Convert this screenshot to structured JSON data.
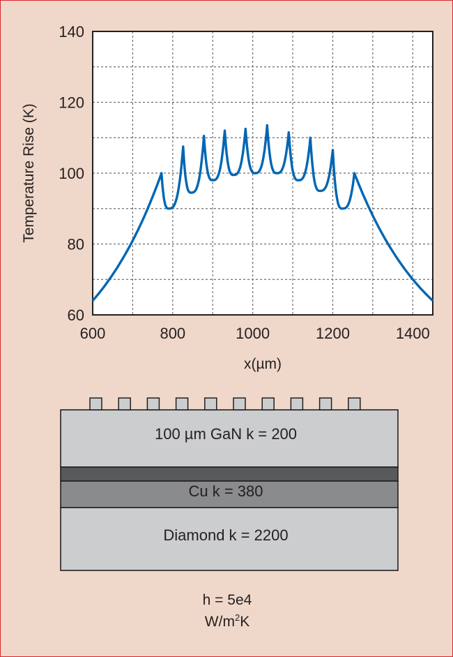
{
  "chart_data": {
    "type": "line",
    "xlabel": "x(µm)",
    "ylabel": "Temperature Rise (K)",
    "xlim": [
      600,
      1450
    ],
    "ylim": [
      60,
      140
    ],
    "x_ticks": [
      600,
      800,
      1000,
      1200,
      1400
    ],
    "y_ticks": [
      60,
      80,
      100,
      120,
      140
    ],
    "grid": true,
    "line_color": "#0066b3",
    "series": [
      {
        "peaks": [
          {
            "x": 772,
            "y": 100
          },
          {
            "x": 826,
            "y": 107.5
          },
          {
            "x": 878,
            "y": 110.5
          },
          {
            "x": 930,
            "y": 112
          },
          {
            "x": 982,
            "y": 112.5
          },
          {
            "x": 1036,
            "y": 113.5
          },
          {
            "x": 1090,
            "y": 111.5
          },
          {
            "x": 1144,
            "y": 110
          },
          {
            "x": 1200,
            "y": 106.5
          },
          {
            "x": 1254,
            "y": 100
          }
        ],
        "valleys": [
          {
            "x": 790,
            "y": 90
          },
          {
            "x": 846,
            "y": 94.5
          },
          {
            "x": 900,
            "y": 98
          },
          {
            "x": 952,
            "y": 99.5
          },
          {
            "x": 1006,
            "y": 100
          },
          {
            "x": 1060,
            "y": 100
          },
          {
            "x": 1114,
            "y": 98
          },
          {
            "x": 1168,
            "y": 95
          },
          {
            "x": 1224,
            "y": 90
          }
        ],
        "start": {
          "x": 600,
          "y": 64
        },
        "end": {
          "x": 1450,
          "y": 64
        }
      }
    ]
  },
  "diagram": {
    "fins": 10,
    "layers": [
      {
        "label": "100 µm GaN k = 200",
        "color": "#cccdcf"
      },
      {
        "label": "",
        "color": "#58595b"
      },
      {
        "label": "Cu k = 380",
        "color": "#8a8b8d"
      },
      {
        "label": "Diamond k = 2200",
        "color": "#cccdcf"
      }
    ],
    "caption": {
      "line1": "h = 5e4",
      "line2_base": "W/m",
      "line2_sup": "2",
      "line2_end": "K"
    }
  }
}
